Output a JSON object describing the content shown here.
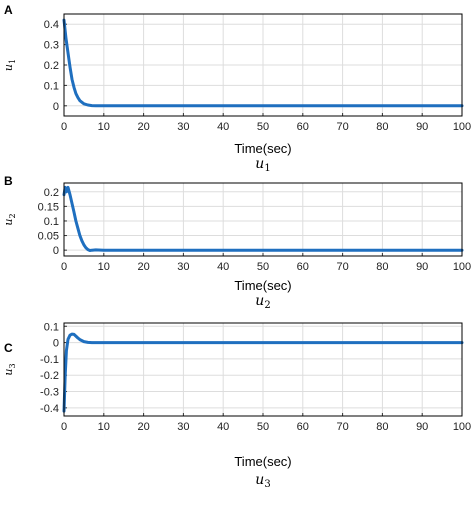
{
  "chart_data": [
    {
      "type": "line",
      "panel_label": "A",
      "ylabel": "u1",
      "xlabel": "Time(sec)",
      "caption": "u1",
      "xlim": [
        0,
        100
      ],
      "ylim": [
        -0.05,
        0.45
      ],
      "xticks": [
        0,
        10,
        20,
        30,
        40,
        50,
        60,
        70,
        80,
        90,
        100
      ],
      "yticks": [
        0,
        0.1,
        0.2,
        0.3,
        0.4
      ],
      "ytick_labels": [
        "0",
        "0.1",
        "0.2",
        "0.3",
        "0.4"
      ],
      "grid": true,
      "series_color": "#1f6fbf",
      "x": [
        0,
        0.5,
        1,
        1.5,
        2,
        2.5,
        3,
        3.5,
        4,
        5,
        6,
        7,
        8,
        10,
        20,
        40,
        60,
        80,
        100
      ],
      "y": [
        0.42,
        0.33,
        0.26,
        0.19,
        0.13,
        0.09,
        0.06,
        0.04,
        0.025,
        0.01,
        0.004,
        0.001,
        0,
        0,
        0,
        0,
        0,
        0,
        0
      ]
    },
    {
      "type": "line",
      "panel_label": "B",
      "ylabel": "u2",
      "xlabel": "Time(sec)",
      "caption": "u2",
      "xlim": [
        0,
        100
      ],
      "ylim": [
        -0.02,
        0.23
      ],
      "xticks": [
        0,
        10,
        20,
        30,
        40,
        50,
        60,
        70,
        80,
        90,
        100
      ],
      "yticks": [
        0,
        0.05,
        0.1,
        0.15,
        0.2
      ],
      "ytick_labels": [
        "0",
        "0.05",
        "0.1",
        "0.15",
        "0.2"
      ],
      "grid": true,
      "series_color": "#1f6fbf",
      "x": [
        0,
        0.3,
        0.6,
        1,
        1.5,
        2,
        2.5,
        3,
        3.5,
        4,
        4.5,
        5,
        5.5,
        6,
        6.5,
        7,
        8,
        10,
        20,
        40,
        60,
        80,
        100
      ],
      "y": [
        0.19,
        0.215,
        0.2,
        0.215,
        0.19,
        0.16,
        0.13,
        0.1,
        0.075,
        0.05,
        0.032,
        0.018,
        0.008,
        0.002,
        -0.001,
        0,
        0.001,
        0,
        0,
        0,
        0,
        0,
        0
      ]
    },
    {
      "type": "line",
      "panel_label": "C",
      "ylabel": "u3",
      "xlabel": "Time(sec)",
      "caption": "u3",
      "xlim": [
        0,
        100
      ],
      "ylim": [
        -0.45,
        0.12
      ],
      "xticks": [
        0,
        10,
        20,
        30,
        40,
        50,
        60,
        70,
        80,
        90,
        100
      ],
      "yticks": [
        -0.4,
        -0.3,
        -0.2,
        -0.1,
        0,
        0.1
      ],
      "ytick_labels": [
        "-0.4",
        "-0.3",
        "-0.2",
        "-0.1",
        "0",
        "0.1"
      ],
      "grid": true,
      "series_color": "#1f6fbf",
      "x": [
        0,
        0.3,
        0.6,
        1,
        1.5,
        2,
        2.5,
        3,
        3.5,
        4,
        5,
        6,
        7,
        8,
        10,
        20,
        40,
        60,
        80,
        100
      ],
      "y": [
        -0.42,
        -0.2,
        -0.05,
        0.02,
        0.045,
        0.052,
        0.05,
        0.04,
        0.028,
        0.018,
        0.006,
        0.001,
        0,
        0,
        0,
        0,
        0,
        0,
        0,
        0
      ]
    }
  ]
}
